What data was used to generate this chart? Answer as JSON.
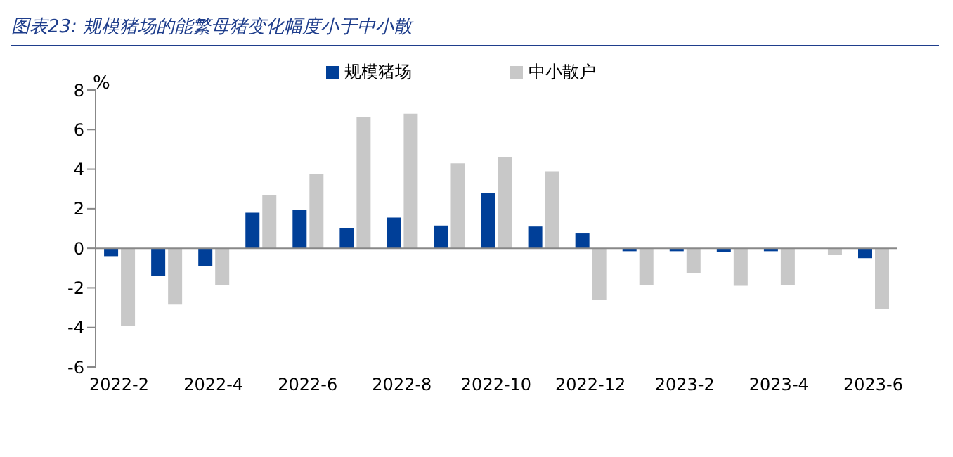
{
  "chart_data": {
    "type": "bar",
    "title": "图表23: 规模猪场的能繁母猪变化幅度小于中小散",
    "ylabel": "%",
    "categories": [
      "2022-2",
      null,
      "2022-4",
      null,
      "2022-6",
      null,
      "2022-8",
      null,
      "2022-10",
      null,
      "2022-12",
      null,
      "2023-2",
      null,
      "2023-4",
      null,
      "2023-6"
    ],
    "series": [
      {
        "name": "规模猪场",
        "color": "#003f98",
        "values": [
          -0.4,
          -1.4,
          -0.9,
          1.8,
          1.95,
          1.0,
          1.55,
          1.15,
          2.8,
          1.1,
          0.75,
          -0.15,
          -0.15,
          -0.2,
          -0.15,
          0,
          -0.5
        ]
      },
      {
        "name": "中小散户",
        "color": "#c8c8c8",
        "values": [
          -3.9,
          -2.85,
          -1.85,
          2.7,
          3.75,
          6.65,
          6.8,
          4.3,
          4.6,
          3.9,
          -2.6,
          -1.85,
          -1.25,
          -1.9,
          -1.85,
          -0.33,
          -3.05
        ]
      }
    ],
    "ylim": [
      -6,
      8
    ],
    "yticks": [
      -6,
      -4,
      -2,
      0,
      2,
      4,
      6,
      8
    ],
    "legend": "top"
  }
}
